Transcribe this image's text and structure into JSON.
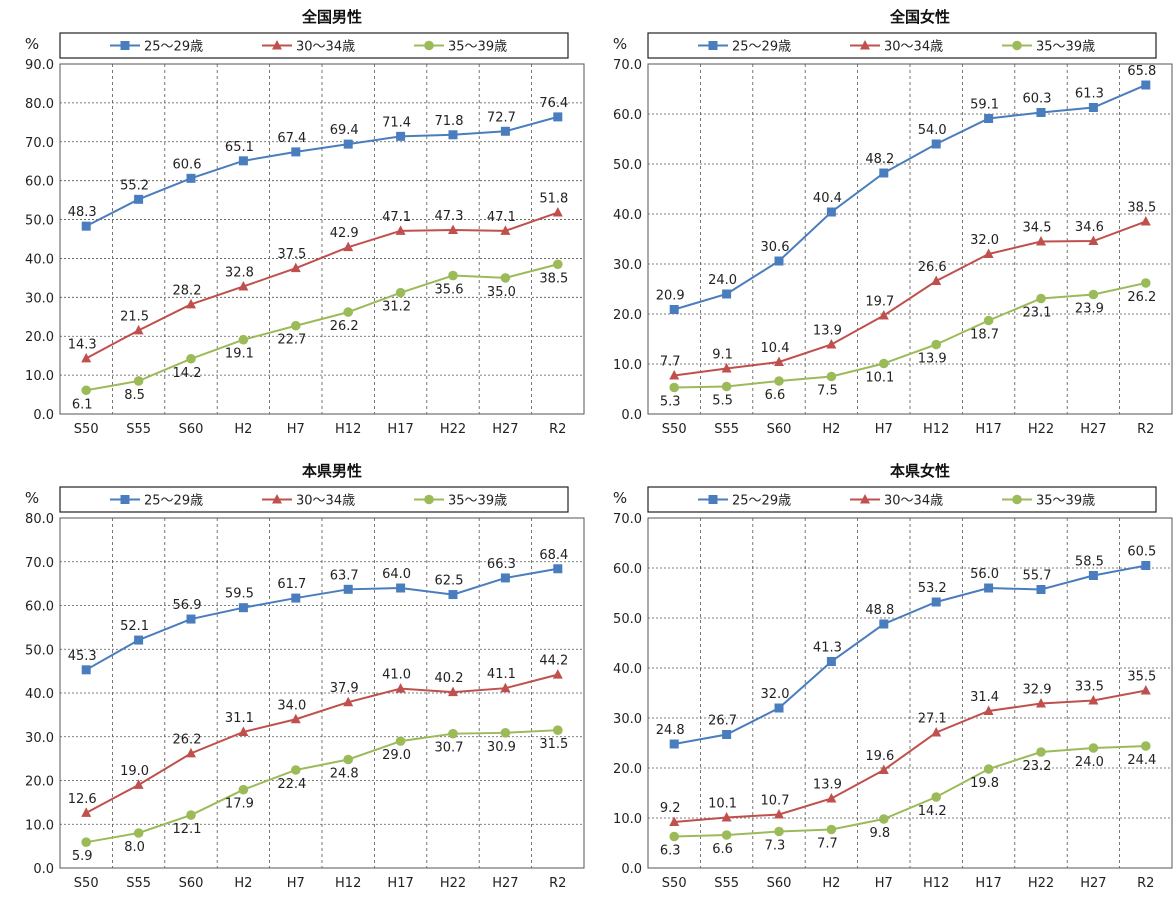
{
  "chart_data": [
    {
      "type": "line",
      "title": "全国男性",
      "ylabel": "%",
      "ylim": [
        0,
        90
      ],
      "ytick_step": 10,
      "grid": true,
      "legend": "top",
      "categories": [
        "S50",
        "S55",
        "S60",
        "H2",
        "H7",
        "H12",
        "H17",
        "H22",
        "H27",
        "R2"
      ],
      "series": [
        {
          "name": "25～29歳",
          "marker": "square",
          "color": "#4a7dbd",
          "values": [
            48.3,
            55.2,
            60.6,
            65.1,
            67.4,
            69.4,
            71.4,
            71.8,
            72.7,
            76.4
          ]
        },
        {
          "name": "30～34歳",
          "marker": "triangle",
          "color": "#c0504d",
          "values": [
            14.3,
            21.5,
            28.2,
            32.8,
            37.5,
            42.9,
            47.1,
            47.3,
            47.1,
            51.8
          ]
        },
        {
          "name": "35～39歳",
          "marker": "circle",
          "color": "#9bbb59",
          "values": [
            6.1,
            8.5,
            14.2,
            19.1,
            22.7,
            26.2,
            31.2,
            35.6,
            35.0,
            38.5
          ]
        }
      ]
    },
    {
      "type": "line",
      "title": "全国女性",
      "ylabel": "%",
      "ylim": [
        0,
        70
      ],
      "ytick_step": 10,
      "grid": true,
      "legend": "top",
      "categories": [
        "S50",
        "S55",
        "S60",
        "H2",
        "H7",
        "H12",
        "H17",
        "H22",
        "H27",
        "R2"
      ],
      "series": [
        {
          "name": "25～29歳",
          "marker": "square",
          "color": "#4a7dbd",
          "values": [
            20.9,
            24.0,
            30.6,
            40.4,
            48.2,
            54.0,
            59.1,
            60.3,
            61.3,
            65.8
          ]
        },
        {
          "name": "30～34歳",
          "marker": "triangle",
          "color": "#c0504d",
          "values": [
            7.7,
            9.1,
            10.4,
            13.9,
            19.7,
            26.6,
            32.0,
            34.5,
            34.6,
            38.5
          ]
        },
        {
          "name": "35～39歳",
          "marker": "circle",
          "color": "#9bbb59",
          "values": [
            5.3,
            5.5,
            6.6,
            7.5,
            10.1,
            13.9,
            18.7,
            23.1,
            23.9,
            26.2
          ]
        }
      ]
    },
    {
      "type": "line",
      "title": "本県男性",
      "ylabel": "%",
      "ylim": [
        0,
        80
      ],
      "ytick_step": 10,
      "grid": true,
      "legend": "top",
      "categories": [
        "S50",
        "S55",
        "S60",
        "H2",
        "H7",
        "H12",
        "H17",
        "H22",
        "H27",
        "R2"
      ],
      "series": [
        {
          "name": "25～29歳",
          "marker": "square",
          "color": "#4a7dbd",
          "values": [
            45.3,
            52.1,
            56.9,
            59.5,
            61.7,
            63.7,
            64.0,
            62.5,
            66.3,
            68.4
          ]
        },
        {
          "name": "30～34歳",
          "marker": "triangle",
          "color": "#c0504d",
          "values": [
            12.6,
            19.0,
            26.2,
            31.1,
            34.0,
            37.9,
            41.0,
            40.2,
            41.1,
            44.2
          ]
        },
        {
          "name": "35～39歳",
          "marker": "circle",
          "color": "#9bbb59",
          "values": [
            5.9,
            8.0,
            12.1,
            17.9,
            22.4,
            24.8,
            29.0,
            30.7,
            30.9,
            31.5
          ]
        }
      ]
    },
    {
      "type": "line",
      "title": "本県女性",
      "ylabel": "%",
      "ylim": [
        0,
        70
      ],
      "ytick_step": 10,
      "grid": true,
      "legend": "top",
      "categories": [
        "S50",
        "S55",
        "S60",
        "H2",
        "H7",
        "H12",
        "H17",
        "H22",
        "H27",
        "R2"
      ],
      "series": [
        {
          "name": "25～29歳",
          "marker": "square",
          "color": "#4a7dbd",
          "values": [
            24.8,
            26.7,
            32.0,
            41.3,
            48.8,
            53.2,
            56.0,
            55.7,
            58.5,
            60.5
          ]
        },
        {
          "name": "30～34歳",
          "marker": "triangle",
          "color": "#c0504d",
          "values": [
            9.2,
            10.1,
            10.7,
            13.9,
            19.6,
            27.1,
            31.4,
            32.9,
            33.5,
            35.5
          ]
        },
        {
          "name": "35～39歳",
          "marker": "circle",
          "color": "#9bbb59",
          "values": [
            6.3,
            6.6,
            7.3,
            7.7,
            9.8,
            14.2,
            19.8,
            23.2,
            24.0,
            24.4
          ]
        }
      ]
    }
  ]
}
